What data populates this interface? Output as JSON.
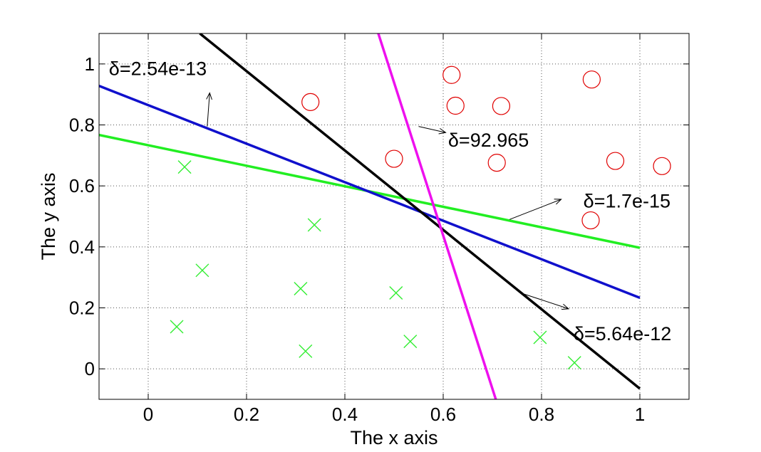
{
  "chart_data": {
    "type": "scatter",
    "xlabel": "The x axis",
    "ylabel": "The y axis",
    "xlim": [
      -0.1,
      1.1
    ],
    "ylim": [
      -0.1,
      1.1
    ],
    "grid": true,
    "xticks": [
      "0",
      "0.2",
      "0.4",
      "0.6",
      "0.8",
      "1"
    ],
    "yticks": [
      "0",
      "0.2",
      "0.4",
      "0.6",
      "0.8",
      "1"
    ],
    "colors": {
      "circle": "#e00000",
      "cross": "#33ee33",
      "green_line": "#22ee22",
      "blue_line": "#1010cc",
      "black_line": "#000000",
      "magenta_line": "#ee10ee"
    },
    "circles": [
      {
        "x": 0.33,
        "y": 0.875
      },
      {
        "x": 0.617,
        "y": 0.964
      },
      {
        "x": 0.625,
        "y": 0.863
      },
      {
        "x": 0.718,
        "y": 0.862
      },
      {
        "x": 0.902,
        "y": 0.949
      },
      {
        "x": 0.5,
        "y": 0.689
      },
      {
        "x": 0.709,
        "y": 0.676
      },
      {
        "x": 0.95,
        "y": 0.682
      },
      {
        "x": 1.045,
        "y": 0.665
      },
      {
        "x": 0.9,
        "y": 0.487
      }
    ],
    "crosses": [
      {
        "x": 0.074,
        "y": 0.662
      },
      {
        "x": 0.338,
        "y": 0.472
      },
      {
        "x": 0.11,
        "y": 0.323
      },
      {
        "x": 0.31,
        "y": 0.263
      },
      {
        "x": 0.504,
        "y": 0.249
      },
      {
        "x": 0.058,
        "y": 0.138
      },
      {
        "x": 0.32,
        "y": 0.058
      },
      {
        "x": 0.533,
        "y": 0.09
      },
      {
        "x": 0.797,
        "y": 0.103
      },
      {
        "x": 0.867,
        "y": 0.02
      }
    ],
    "lines": [
      {
        "color_key": "green_line",
        "x": [
          -0.1,
          1.0
        ],
        "y": [
          0.767,
          0.397
        ]
      },
      {
        "color_key": "blue_line",
        "x": [
          -0.1,
          1.0
        ],
        "y": [
          0.928,
          0.233
        ]
      },
      {
        "color_key": "black_line",
        "x": [
          0.105,
          1.0
        ],
        "y": [
          1.1,
          -0.065
        ]
      },
      {
        "color_key": "magenta_line",
        "x": [
          0.468,
          0.707
        ],
        "y": [
          1.1,
          -0.1
        ]
      }
    ],
    "annotations": [
      {
        "text": "δ=2.54e-13",
        "x": -0.08,
        "y": 0.985,
        "arrow_from": [
          0.12,
          0.795
        ],
        "arrow_to": [
          0.125,
          0.905
        ]
      },
      {
        "text": "δ=92.965",
        "x": 0.61,
        "y": 0.75,
        "arrow_from": [
          0.55,
          0.795
        ],
        "arrow_to": [
          0.605,
          0.775
        ]
      },
      {
        "text": "δ=1.7e-15",
        "x": 0.885,
        "y": 0.55,
        "arrow_from": [
          0.735,
          0.49
        ],
        "arrow_to": [
          0.84,
          0.556
        ]
      },
      {
        "text": "δ=5.64e-12",
        "x": 0.865,
        "y": 0.115,
        "arrow_from": [
          0.765,
          0.245
        ],
        "arrow_to": [
          0.855,
          0.197
        ]
      }
    ]
  }
}
